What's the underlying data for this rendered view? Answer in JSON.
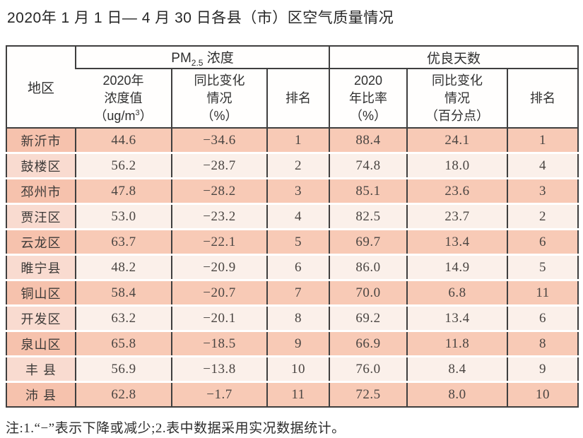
{
  "title": "2020年 1 月 1 日— 4 月 30 日各县（市）区空气质量情况",
  "note": "注:1.“−”表示下降或减少;2.表中数据采用实况数据统计。",
  "colors": {
    "border": "#3f3f3f",
    "row_odd": "#f8cab6",
    "row_even": "#fbf0ea",
    "region_odd": "#f6c2ad",
    "region_even": "#f9dbd0"
  },
  "table": {
    "headers": {
      "region": "地区",
      "pm_group": {
        "prefix": "PM",
        "sub": "2.5",
        "suffix": " 浓度"
      },
      "good_group": "优良天数",
      "pm_value": {
        "line1": "2020年",
        "line2": "浓度值",
        "line3_prefix": "（ug/m",
        "line3_sup": "3",
        "line3_suffix": "）"
      },
      "pm_change": {
        "line1": "同比变化",
        "line2": "情况",
        "line3": "（%）"
      },
      "pm_rank": "排名",
      "good_ratio": {
        "line1": "2020",
        "line2": "年比率",
        "line3": "（%）"
      },
      "good_change": {
        "line1": "同比变化",
        "line2": "情况",
        "line3": "（百分点）"
      },
      "good_rank": "排名"
    },
    "rows": [
      [
        "新沂市",
        "44.6",
        "−34.6",
        "1",
        "88.4",
        "24.1",
        "1"
      ],
      [
        "鼓楼区",
        "56.2",
        "−28.7",
        "2",
        "74.8",
        "18.0",
        "4"
      ],
      [
        "邳州市",
        "47.8",
        "−28.2",
        "3",
        "85.1",
        "23.6",
        "3"
      ],
      [
        "贾汪区",
        "53.0",
        "−23.2",
        "4",
        "82.5",
        "23.7",
        "2"
      ],
      [
        "云龙区",
        "63.7",
        "−22.1",
        "5",
        "69.7",
        "13.4",
        "6"
      ],
      [
        "睢宁县",
        "48.2",
        "−20.9",
        "6",
        "86.0",
        "14.9",
        "5"
      ],
      [
        "铜山区",
        "58.4",
        "−20.7",
        "7",
        "70.0",
        "6.8",
        "11"
      ],
      [
        "开发区",
        "63.2",
        "−20.1",
        "8",
        "69.2",
        "13.4",
        "6"
      ],
      [
        "泉山区",
        "65.8",
        "−18.5",
        "9",
        "66.9",
        "11.8",
        "8"
      ],
      [
        "丰 县",
        "56.9",
        "−13.8",
        "10",
        "76.0",
        "8.4",
        "9"
      ],
      [
        "沛 县",
        "62.8",
        "−1.7",
        "11",
        "72.5",
        "8.0",
        "10"
      ]
    ]
  }
}
